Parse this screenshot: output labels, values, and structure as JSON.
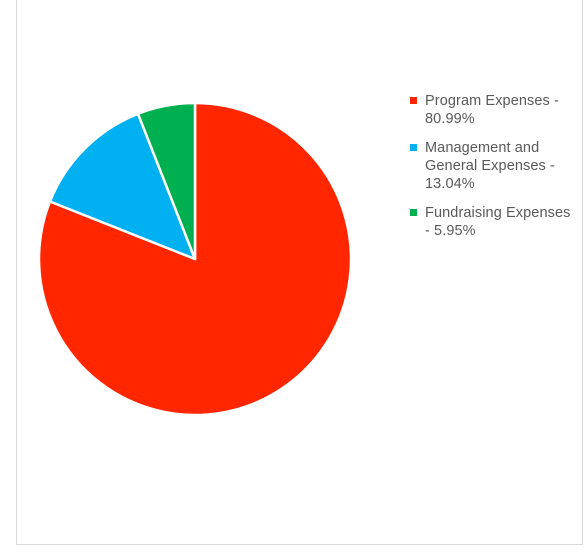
{
  "chart_data": {
    "type": "pie",
    "title": "",
    "categories": [
      "Program Expenses",
      "Management and General Expenses",
      "Fundraising Expenses"
    ],
    "values": [
      80.99,
      13.04,
      5.95
    ],
    "colors": [
      "#ff2600",
      "#00b0f0",
      "#00b050"
    ],
    "legend_position": "right",
    "legend": [
      {
        "label": "Program Expenses -\n80.99%",
        "color": "#ff2600"
      },
      {
        "label": "Management and\nGeneral Expenses  -\n13.04%",
        "color": "#00b0f0"
      },
      {
        "label": "Fundraising Expenses\n- 5.95%",
        "color": "#00b050"
      }
    ]
  }
}
